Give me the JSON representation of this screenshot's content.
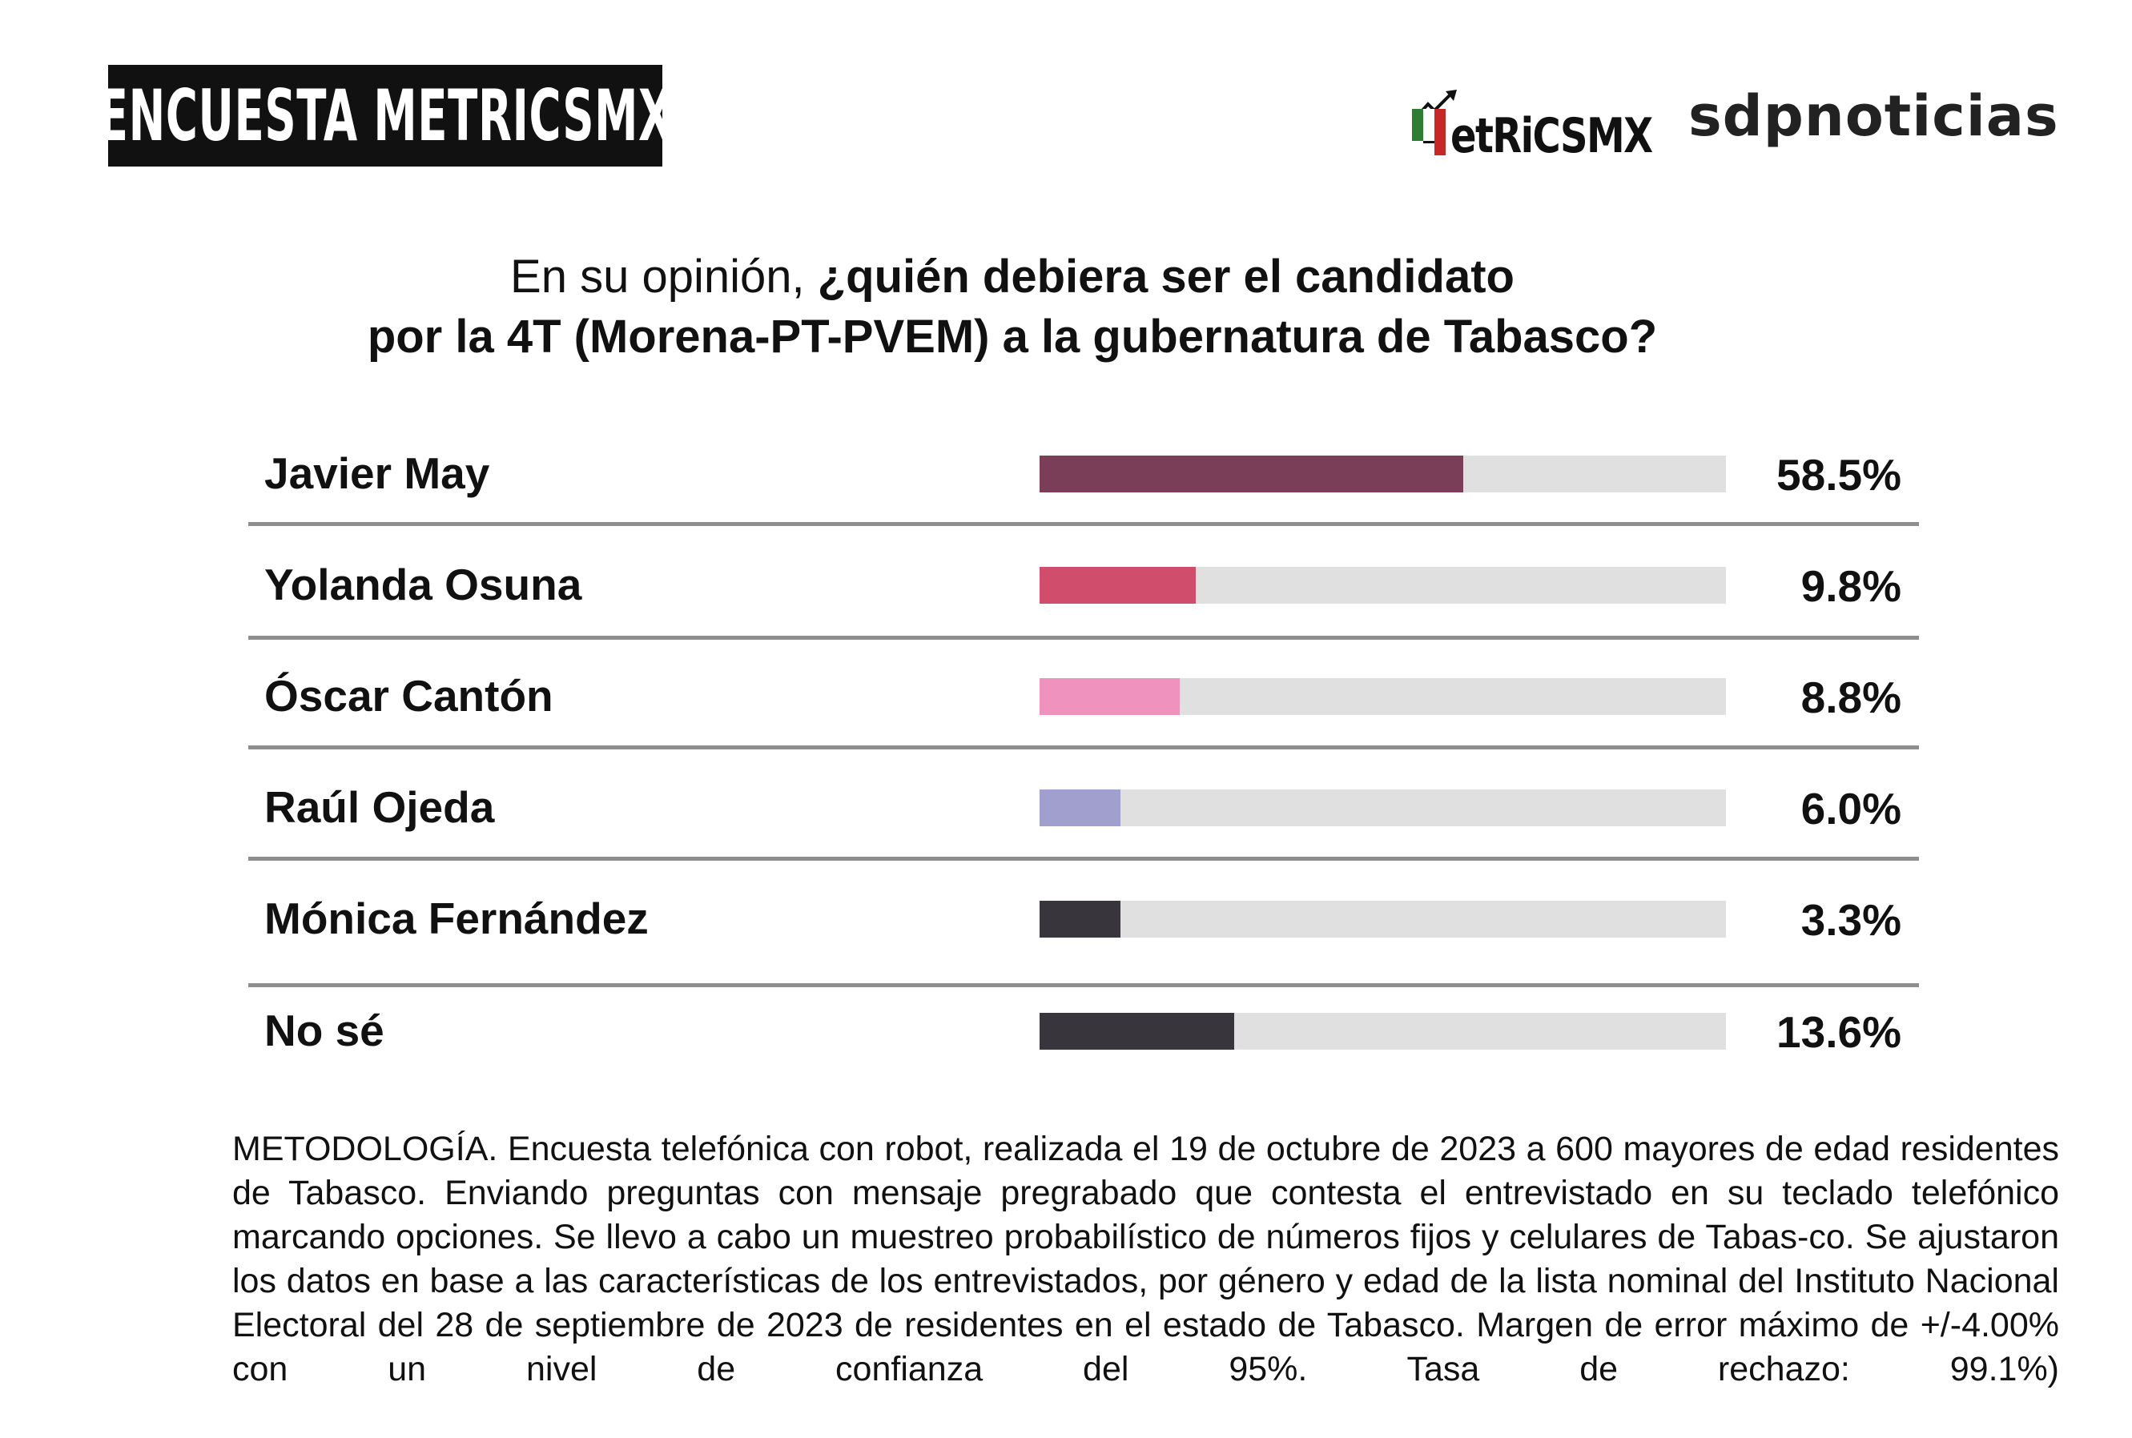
{
  "header": {
    "badge": "ENCUESTA METRICSMX",
    "logos": [
      "MetRiCSMX",
      "sdpnoticias"
    ]
  },
  "colors": {
    "track": "#e0e0e0",
    "logo_green": "#2e7d32",
    "logo_red": "#c62828"
  },
  "chart_data": {
    "type": "bar",
    "orientation": "horizontal",
    "title_normal": "En su opinión, ",
    "title_bold_1": "¿quién debiera ser el candidato",
    "title_bold_2": "por la 4T (Morena-PT-PVEM) a la gubernatura de Tabasco?",
    "categories": [
      "Javier May",
      "Yolanda Osuna",
      "Óscar Cantón",
      "Raúl Ojeda",
      "Mónica Fernández",
      "No sé"
    ],
    "values": [
      58.5,
      9.8,
      8.8,
      6.0,
      3.3,
      13.6
    ],
    "labels": [
      "58.5%",
      "9.8%",
      "8.8%",
      "6.0%",
      "3.3%",
      "13.6%"
    ],
    "bar_fill_shown": [
      0.617,
      0.228,
      0.204,
      0.118,
      0.118,
      0.283
    ],
    "bar_colors": [
      "#7a3e58",
      "#d04d6b",
      "#ef92bd",
      "#a09fce",
      "#38363c",
      "#38363c"
    ],
    "grid": false,
    "legend": "none"
  },
  "methodology": "METODOLOGÍA. Encuesta telefónica con robot, realizada el 19 de octubre de 2023 a 600 mayores de edad residentes de Tabasco. Enviando preguntas con mensaje pregrabado que contesta el entrevistado en su teclado telefónico marcando opciones. Se llevo a cabo un muestreo probabilístico de números fijos y celulares de Tabas-co. Se ajustaron los datos en base a las características de los entrevistados, por género y edad de la lista nominal del Instituto Nacional Electoral del 28 de septiembre de 2023 de residentes en el estado de Tabasco. Margen de error máximo de +/-4.00% con un nivel de confianza del 95%. Tasa de rechazo: 99.1%)"
}
